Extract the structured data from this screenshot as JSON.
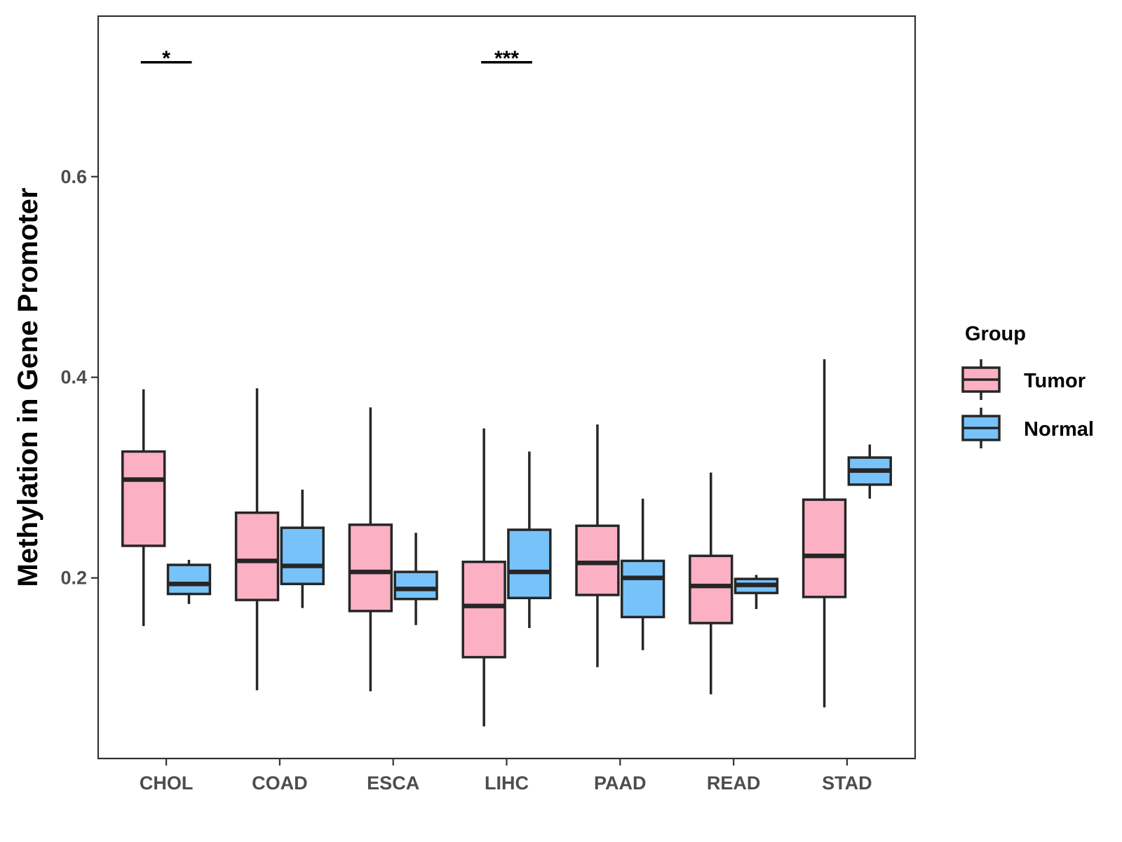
{
  "chart_data": {
    "type": "boxplot",
    "title": "",
    "xlabel": "",
    "ylabel": "Methylation in Gene Promoter",
    "ylim": [
      0.02,
      0.76
    ],
    "yticks": [
      0.2,
      0.4,
      0.6
    ],
    "ytick_labels": [
      "0.2",
      "0.4",
      "0.6"
    ],
    "categories": [
      "CHOL",
      "COAD",
      "ESCA",
      "LIHC",
      "PAAD",
      "READ",
      "STAD"
    ],
    "grid": false,
    "legend": {
      "title": "Group",
      "position": "right",
      "entries": [
        {
          "name": "Tumor",
          "color": "#FBB0C3"
        },
        {
          "name": "Normal",
          "color": "#78C2FA"
        }
      ]
    },
    "series": [
      {
        "name": "Tumor",
        "color": "#FBB0C3",
        "boxes": [
          {
            "min": 0.152,
            "q1": 0.232,
            "median": 0.298,
            "q3": 0.326,
            "max": 0.388
          },
          {
            "min": 0.088,
            "q1": 0.178,
            "median": 0.217,
            "q3": 0.265,
            "max": 0.389
          },
          {
            "min": 0.087,
            "q1": 0.167,
            "median": 0.206,
            "q3": 0.253,
            "max": 0.37
          },
          {
            "min": 0.052,
            "q1": 0.121,
            "median": 0.172,
            "q3": 0.216,
            "max": 0.349
          },
          {
            "min": 0.111,
            "q1": 0.183,
            "median": 0.215,
            "q3": 0.252,
            "max": 0.353
          },
          {
            "min": 0.084,
            "q1": 0.155,
            "median": 0.192,
            "q3": 0.222,
            "max": 0.305
          },
          {
            "min": 0.071,
            "q1": 0.181,
            "median": 0.222,
            "q3": 0.278,
            "max": 0.418
          }
        ]
      },
      {
        "name": "Normal",
        "color": "#78C2FA",
        "boxes": [
          {
            "min": 0.174,
            "q1": 0.184,
            "median": 0.194,
            "q3": 0.213,
            "max": 0.218
          },
          {
            "min": 0.17,
            "q1": 0.194,
            "median": 0.212,
            "q3": 0.25,
            "max": 0.288
          },
          {
            "min": 0.153,
            "q1": 0.179,
            "median": 0.189,
            "q3": 0.206,
            "max": 0.245
          },
          {
            "min": 0.15,
            "q1": 0.18,
            "median": 0.206,
            "q3": 0.248,
            "max": 0.326
          },
          {
            "min": 0.128,
            "q1": 0.161,
            "median": 0.2,
            "q3": 0.217,
            "max": 0.279
          },
          {
            "min": 0.169,
            "q1": 0.185,
            "median": 0.193,
            "q3": 0.199,
            "max": 0.203
          },
          {
            "min": 0.279,
            "q1": 0.293,
            "median": 0.307,
            "q3": 0.32,
            "max": 0.333
          }
        ]
      }
    ],
    "annotations": [
      {
        "category": "CHOL",
        "label": "*",
        "y": 0.714
      },
      {
        "category": "LIHC",
        "label": "***",
        "y": 0.714
      }
    ],
    "colors": {
      "box_outline": "#262626",
      "axis": "#333333",
      "tick_text": "#4d4d4d"
    }
  }
}
